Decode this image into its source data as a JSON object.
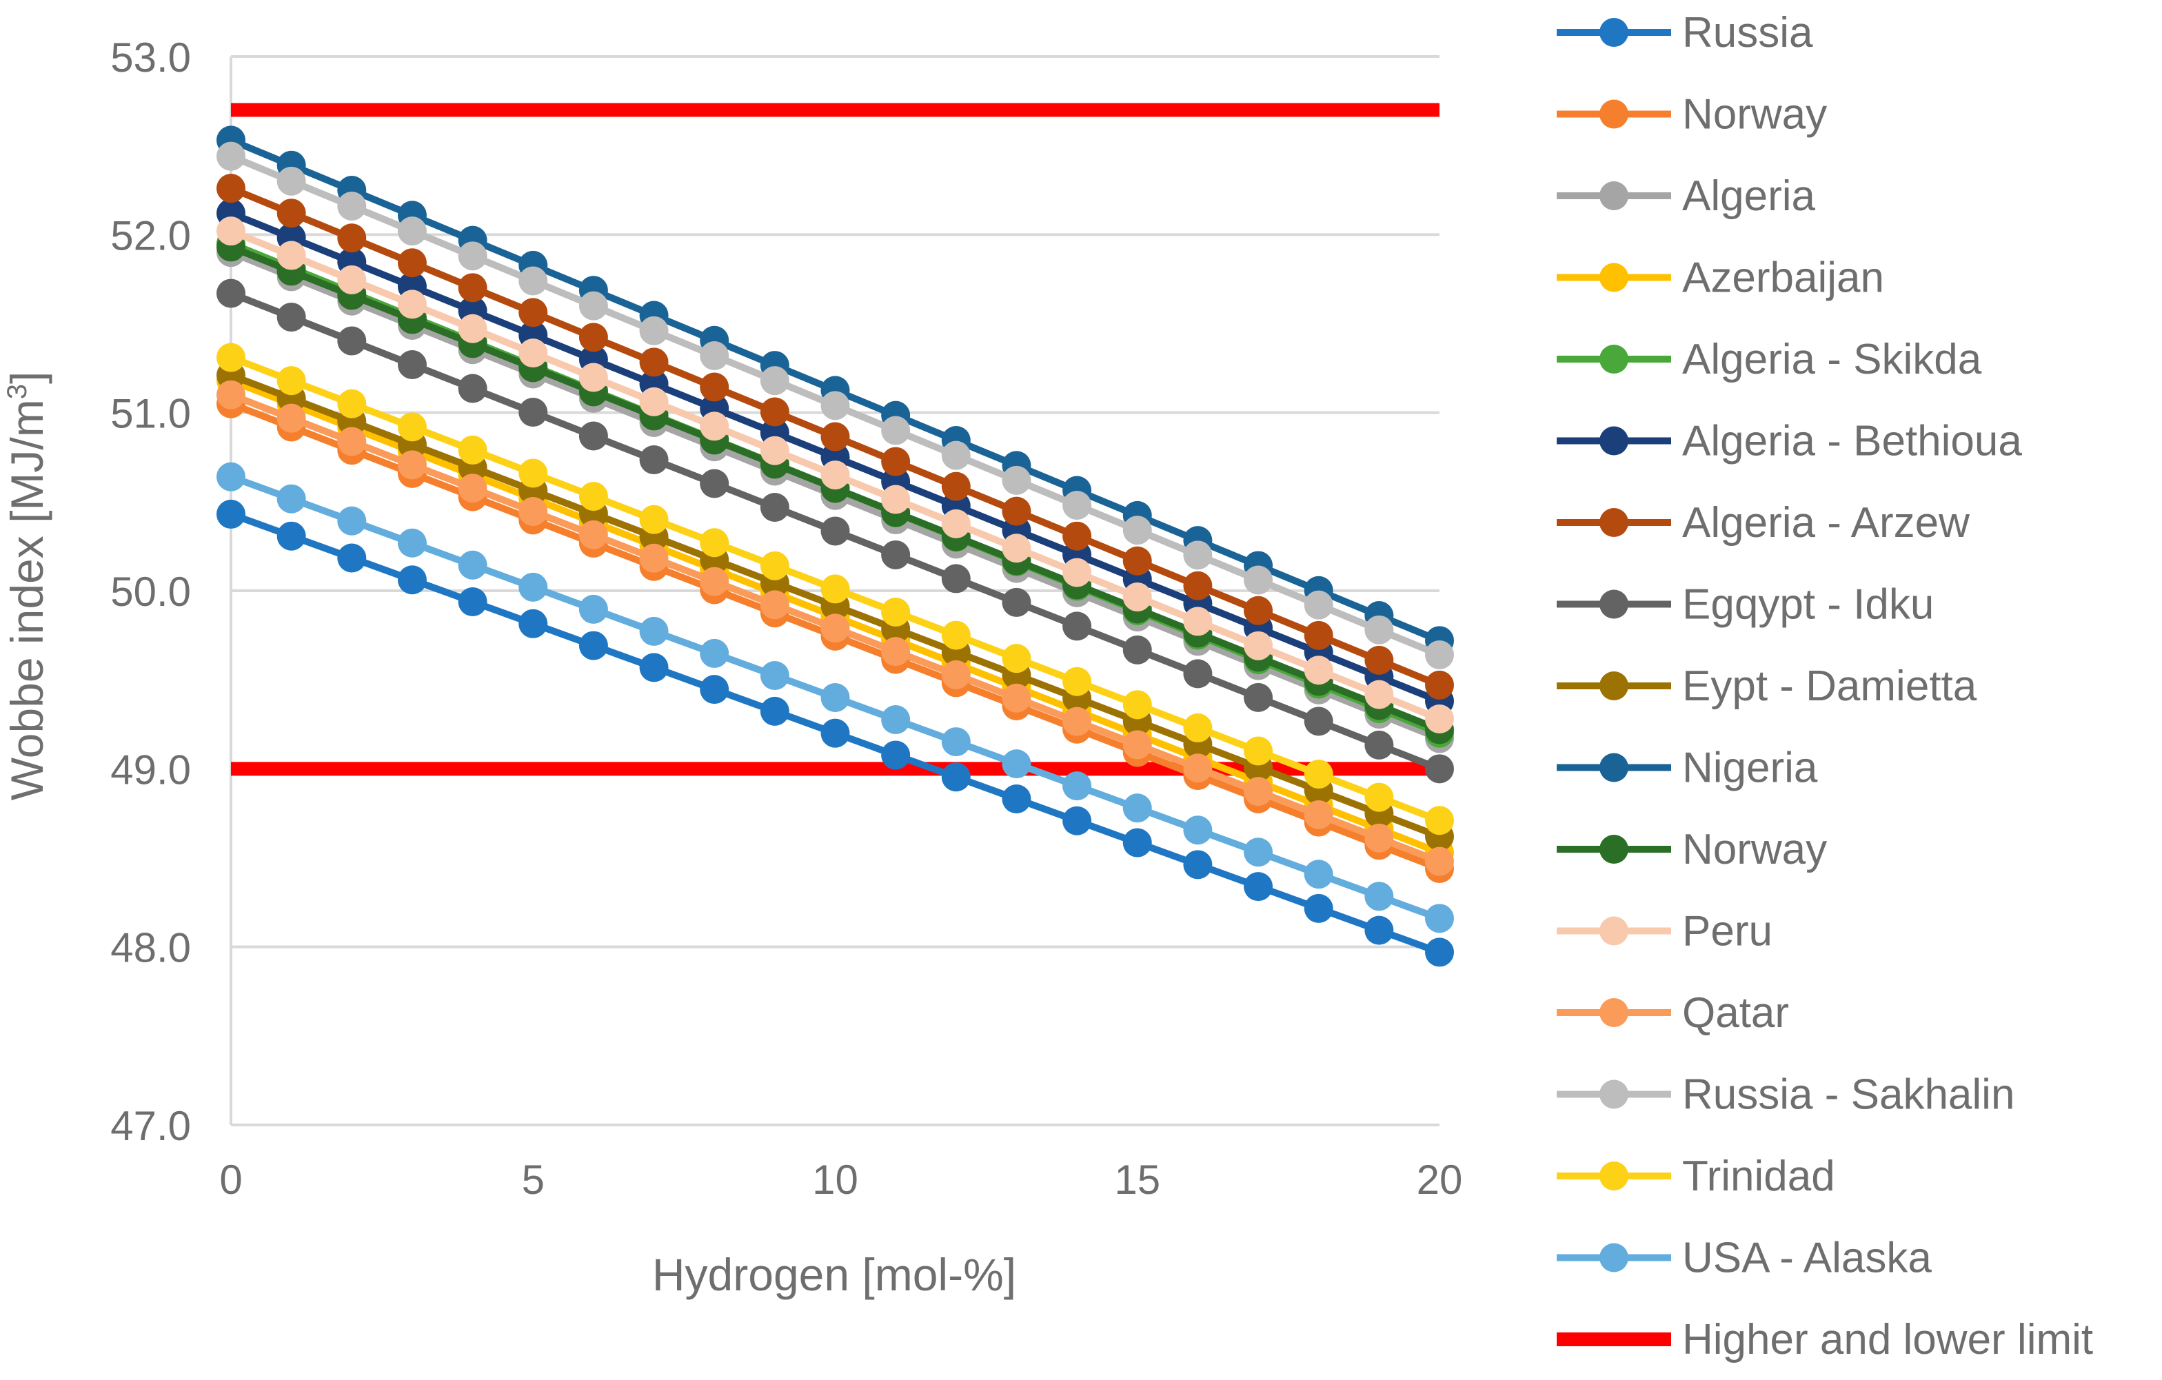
{
  "chart_data": {
    "type": "line",
    "title": "",
    "xlabel": "Hydrogen [mol-%]",
    "ylabel": "Wobbe index [MJ/m³]",
    "ylabel_main": "Wobbe index [MJ/m",
    "ylabel_sup": "3",
    "ylabel_end": "]",
    "xlim": [
      0,
      20
    ],
    "ylim": [
      47.0,
      53.0
    ],
    "x_ticks": [
      "0",
      "5",
      "10",
      "15",
      "20"
    ],
    "x_tick_values": [
      0,
      5,
      10,
      15,
      20
    ],
    "y_ticks": [
      "47.0",
      "48.0",
      "49.0",
      "50.0",
      "51.0",
      "52.0",
      "53.0"
    ],
    "y_tick_values": [
      47,
      48,
      49,
      50,
      51,
      52,
      53
    ],
    "grid": true,
    "legend_position": "right",
    "x": [
      0,
      1,
      2,
      3,
      4,
      5,
      6,
      7,
      8,
      9,
      10,
      11,
      12,
      13,
      14,
      15,
      16,
      17,
      18,
      19,
      20
    ],
    "series": [
      {
        "name": "Russia",
        "color": "#1f77c4",
        "start": 50.43,
        "end": 47.97
      },
      {
        "name": "Norway",
        "color": "#f57f2c",
        "start": 51.05,
        "end": 48.44
      },
      {
        "name": "Algeria",
        "color": "#a5a5a5",
        "start": 51.9,
        "end": 49.17
      },
      {
        "name": "Azerbaijan",
        "color": "#ffc000",
        "start": 51.18,
        "end": 48.53
      },
      {
        "name": "Algeria - Skikda",
        "color": "#4aa83a",
        "start": 51.95,
        "end": 49.2
      },
      {
        "name": "Algeria - Bethioua",
        "color": "#1a3f7a",
        "start": 52.12,
        "end": 49.38
      },
      {
        "name": "Algeria - Arzew",
        "color": "#b54a0e",
        "start": 52.26,
        "end": 49.47
      },
      {
        "name": "Egqypt - Idku",
        "color": "#636363",
        "start": 51.67,
        "end": 49.0
      },
      {
        "name": "Eypt - Damietta",
        "color": "#9c7303",
        "start": 51.21,
        "end": 48.62
      },
      {
        "name": "Nigeria",
        "color": "#1a6396",
        "start": 52.53,
        "end": 49.72
      },
      {
        "name": "Norway",
        "color": "#2b6e25",
        "start": 51.93,
        "end": 49.22
      },
      {
        "name": "Peru",
        "color": "#f9c9ad",
        "start": 52.02,
        "end": 49.28
      },
      {
        "name": "Qatar",
        "color": "#fb9b5a",
        "start": 51.1,
        "end": 48.48
      },
      {
        "name": "Russia - Sakhalin",
        "color": "#bdbdbd",
        "start": 52.44,
        "end": 49.64
      },
      {
        "name": "Trinidad",
        "color": "#fcd116",
        "start": 51.31,
        "end": 48.71
      },
      {
        "name": "USA - Alaska",
        "color": "#62addd",
        "start": 50.64,
        "end": 48.16
      }
    ],
    "limits": {
      "name": "Higher and lower limit",
      "color": "#ff0000",
      "values": [
        52.7,
        49.0
      ]
    }
  }
}
